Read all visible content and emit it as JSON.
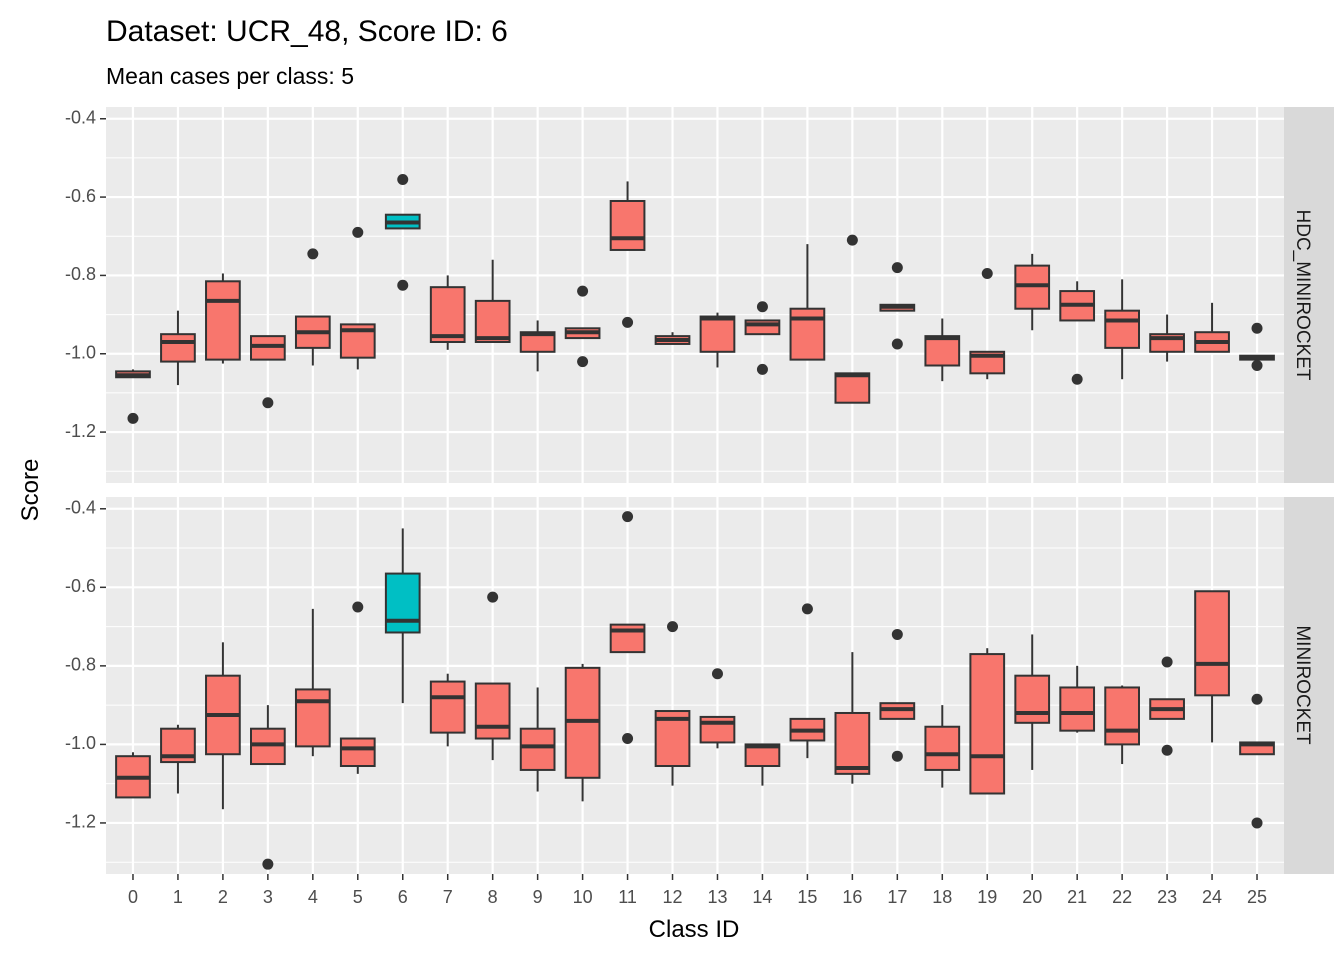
{
  "chart_data": {
    "type": "boxplot",
    "title": "Dataset: UCR_48, Score ID: 6",
    "subtitle": "Mean cases per class: 5",
    "xlabel": "Class ID",
    "ylabel": "Score",
    "categories": [
      "0",
      "1",
      "2",
      "3",
      "4",
      "5",
      "6",
      "7",
      "8",
      "9",
      "10",
      "11",
      "12",
      "13",
      "14",
      "15",
      "16",
      "17",
      "18",
      "19",
      "20",
      "21",
      "22",
      "23",
      "24",
      "25"
    ],
    "yticks": [
      -1.2,
      -1.0,
      -0.8,
      -0.6,
      -0.4
    ],
    "ytick_labels": [
      "-1.2",
      "-1.0",
      "-0.8",
      "-0.6",
      "-0.4"
    ],
    "ylim": [
      -1.33,
      -0.37
    ],
    "grid": true,
    "colors": {
      "default": "#F8766D",
      "highlight": "#00BFC4",
      "panel": "#EBEBEB",
      "strip": "#D9D9D9",
      "grid": "#FFFFFF",
      "outline": "#333333"
    },
    "highlight_class": "6",
    "panels": [
      {
        "name": "HDC_MINIROCKET",
        "boxes": [
          {
            "q1": -1.06,
            "med": -1.055,
            "q3": -1.045,
            "lo": -1.06,
            "hi": -1.04,
            "out": [
              -1.165
            ]
          },
          {
            "q1": -1.02,
            "med": -0.97,
            "q3": -0.95,
            "lo": -1.08,
            "hi": -0.89,
            "out": []
          },
          {
            "q1": -1.015,
            "med": -0.865,
            "q3": -0.815,
            "lo": -1.025,
            "hi": -0.795,
            "out": []
          },
          {
            "q1": -1.015,
            "med": -0.98,
            "q3": -0.955,
            "lo": -1.015,
            "hi": -0.955,
            "out": [
              -1.125
            ]
          },
          {
            "q1": -0.985,
            "med": -0.945,
            "q3": -0.905,
            "lo": -1.03,
            "hi": -0.905,
            "out": [
              -0.745
            ]
          },
          {
            "q1": -1.01,
            "med": -0.94,
            "q3": -0.925,
            "lo": -1.04,
            "hi": -0.925,
            "out": [
              -0.69
            ]
          },
          {
            "q1": -0.68,
            "med": -0.665,
            "q3": -0.645,
            "lo": -0.68,
            "hi": -0.645,
            "out": [
              -0.555,
              -0.825
            ]
          },
          {
            "q1": -0.97,
            "med": -0.955,
            "q3": -0.83,
            "lo": -0.99,
            "hi": -0.8,
            "out": []
          },
          {
            "q1": -0.97,
            "med": -0.96,
            "q3": -0.865,
            "lo": -0.97,
            "hi": -0.76,
            "out": []
          },
          {
            "q1": -0.995,
            "med": -0.95,
            "q3": -0.945,
            "lo": -1.045,
            "hi": -0.915,
            "out": []
          },
          {
            "q1": -0.96,
            "med": -0.945,
            "q3": -0.935,
            "lo": -0.96,
            "hi": -0.935,
            "out": [
              -0.84,
              -1.02
            ]
          },
          {
            "q1": -0.735,
            "med": -0.705,
            "q3": -0.61,
            "lo": -0.735,
            "hi": -0.56,
            "out": [
              -0.92
            ]
          },
          {
            "q1": -0.975,
            "med": -0.965,
            "q3": -0.955,
            "lo": -0.975,
            "hi": -0.945,
            "out": []
          },
          {
            "q1": -0.995,
            "med": -0.91,
            "q3": -0.905,
            "lo": -1.035,
            "hi": -0.895,
            "out": []
          },
          {
            "q1": -0.95,
            "med": -0.925,
            "q3": -0.915,
            "lo": -0.95,
            "hi": -0.915,
            "out": [
              -0.88,
              -1.04
            ]
          },
          {
            "q1": -1.015,
            "med": -0.91,
            "q3": -0.885,
            "lo": -1.015,
            "hi": -0.72,
            "out": []
          },
          {
            "q1": -1.125,
            "med": -1.055,
            "q3": -1.05,
            "lo": -1.125,
            "hi": -1.05,
            "out": [
              -0.71
            ]
          },
          {
            "q1": -0.89,
            "med": -0.88,
            "q3": -0.875,
            "lo": -0.89,
            "hi": -0.875,
            "out": [
              -0.78,
              -0.975
            ]
          },
          {
            "q1": -1.03,
            "med": -0.96,
            "q3": -0.955,
            "lo": -1.07,
            "hi": -0.91,
            "out": []
          },
          {
            "q1": -1.05,
            "med": -1.005,
            "q3": -0.995,
            "lo": -1.065,
            "hi": -0.995,
            "out": [
              -0.795
            ]
          },
          {
            "q1": -0.885,
            "med": -0.825,
            "q3": -0.775,
            "lo": -0.94,
            "hi": -0.745,
            "out": []
          },
          {
            "q1": -0.915,
            "med": -0.875,
            "q3": -0.84,
            "lo": -0.915,
            "hi": -0.815,
            "out": [
              -1.065
            ]
          },
          {
            "q1": -0.985,
            "med": -0.915,
            "q3": -0.89,
            "lo": -1.065,
            "hi": -0.81,
            "out": []
          },
          {
            "q1": -0.995,
            "med": -0.96,
            "q3": -0.95,
            "lo": -1.02,
            "hi": -0.9,
            "out": []
          },
          {
            "q1": -0.995,
            "med": -0.97,
            "q3": -0.945,
            "lo": -0.995,
            "hi": -0.87,
            "out": []
          },
          {
            "q1": -1.015,
            "med": -1.01,
            "q3": -1.005,
            "lo": -1.015,
            "hi": -1.005,
            "out": [
              -0.935,
              -1.03
            ]
          }
        ]
      },
      {
        "name": "MINIROCKET",
        "boxes": [
          {
            "q1": -1.135,
            "med": -1.085,
            "q3": -1.03,
            "lo": -1.135,
            "hi": -1.02,
            "out": []
          },
          {
            "q1": -1.045,
            "med": -1.03,
            "q3": -0.96,
            "lo": -1.125,
            "hi": -0.95,
            "out": []
          },
          {
            "q1": -1.025,
            "med": -0.925,
            "q3": -0.825,
            "lo": -1.165,
            "hi": -0.74,
            "out": []
          },
          {
            "q1": -1.05,
            "med": -1.0,
            "q3": -0.96,
            "lo": -1.05,
            "hi": -0.9,
            "out": [
              -1.305
            ]
          },
          {
            "q1": -1.005,
            "med": -0.89,
            "q3": -0.86,
            "lo": -1.03,
            "hi": -0.655,
            "out": []
          },
          {
            "q1": -1.055,
            "med": -1.01,
            "q3": -0.985,
            "lo": -1.075,
            "hi": -0.985,
            "out": [
              -0.65
            ]
          },
          {
            "q1": -0.715,
            "med": -0.685,
            "q3": -0.565,
            "lo": -0.895,
            "hi": -0.45,
            "out": []
          },
          {
            "q1": -0.97,
            "med": -0.88,
            "q3": -0.84,
            "lo": -1.005,
            "hi": -0.82,
            "out": []
          },
          {
            "q1": -0.985,
            "med": -0.955,
            "q3": -0.845,
            "lo": -1.04,
            "hi": -0.845,
            "out": [
              -0.625
            ]
          },
          {
            "q1": -1.065,
            "med": -1.005,
            "q3": -0.96,
            "lo": -1.12,
            "hi": -0.855,
            "out": []
          },
          {
            "q1": -1.085,
            "med": -0.94,
            "q3": -0.805,
            "lo": -1.145,
            "hi": -0.795,
            "out": []
          },
          {
            "q1": -0.765,
            "med": -0.71,
            "q3": -0.695,
            "lo": -0.765,
            "hi": -0.695,
            "out": [
              -0.42,
              -0.985
            ]
          },
          {
            "q1": -1.055,
            "med": -0.935,
            "q3": -0.915,
            "lo": -1.105,
            "hi": -0.915,
            "out": [
              -0.7
            ]
          },
          {
            "q1": -0.995,
            "med": -0.945,
            "q3": -0.93,
            "lo": -1.01,
            "hi": -0.93,
            "out": [
              -0.82
            ]
          },
          {
            "q1": -1.055,
            "med": -1.005,
            "q3": -1.0,
            "lo": -1.105,
            "hi": -1.0,
            "out": []
          },
          {
            "q1": -0.99,
            "med": -0.965,
            "q3": -0.935,
            "lo": -1.035,
            "hi": -0.935,
            "out": [
              -0.655
            ]
          },
          {
            "q1": -1.075,
            "med": -1.06,
            "q3": -0.92,
            "lo": -1.1,
            "hi": -0.765,
            "out": []
          },
          {
            "q1": -0.935,
            "med": -0.91,
            "q3": -0.895,
            "lo": -0.935,
            "hi": -0.895,
            "out": [
              -0.72,
              -1.03
            ]
          },
          {
            "q1": -1.065,
            "med": -1.025,
            "q3": -0.955,
            "lo": -1.11,
            "hi": -0.9,
            "out": []
          },
          {
            "q1": -1.125,
            "med": -1.03,
            "q3": -0.77,
            "lo": -1.125,
            "hi": -0.755,
            "out": []
          },
          {
            "q1": -0.945,
            "med": -0.92,
            "q3": -0.825,
            "lo": -1.065,
            "hi": -0.72,
            "out": []
          },
          {
            "q1": -0.965,
            "med": -0.92,
            "q3": -0.855,
            "lo": -0.97,
            "hi": -0.8,
            "out": []
          },
          {
            "q1": -1.0,
            "med": -0.965,
            "q3": -0.855,
            "lo": -1.05,
            "hi": -0.85,
            "out": []
          },
          {
            "q1": -0.935,
            "med": -0.91,
            "q3": -0.885,
            "lo": -0.935,
            "hi": -0.885,
            "out": [
              -0.79,
              -1.015
            ]
          },
          {
            "q1": -0.875,
            "med": -0.795,
            "q3": -0.61,
            "lo": -0.995,
            "hi": -0.61,
            "out": []
          },
          {
            "q1": -1.025,
            "med": -1.0,
            "q3": -0.995,
            "lo": -1.025,
            "hi": -0.995,
            "out": [
              -0.885,
              -1.2
            ]
          }
        ]
      }
    ]
  }
}
